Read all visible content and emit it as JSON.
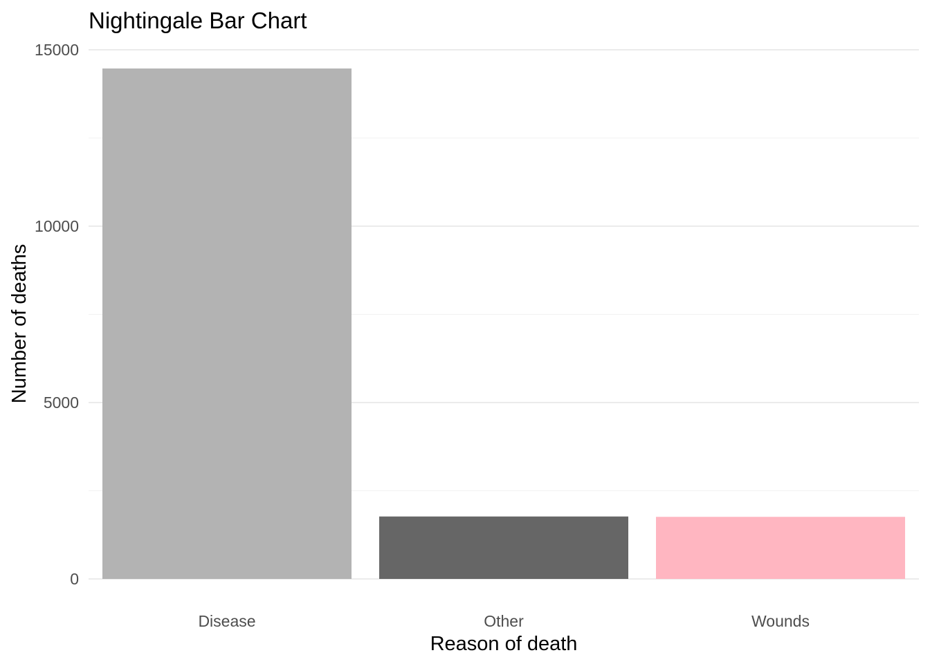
{
  "chart_data": {
    "type": "bar",
    "title": "Nightingale Bar Chart",
    "xlabel": "Reason of death",
    "ylabel": "Number of deaths",
    "categories": [
      "Disease",
      "Other",
      "Wounds"
    ],
    "values": [
      14470,
      1770,
      1760
    ],
    "colors": [
      "#b3b3b3",
      "#666666",
      "#ffb6c1"
    ],
    "ylim": [
      0,
      15000
    ],
    "y_ticks": [
      0,
      5000,
      10000,
      15000
    ],
    "y_tick_labels": [
      "0",
      "5000",
      "10000",
      "15000"
    ],
    "grid": true,
    "legend": false
  }
}
